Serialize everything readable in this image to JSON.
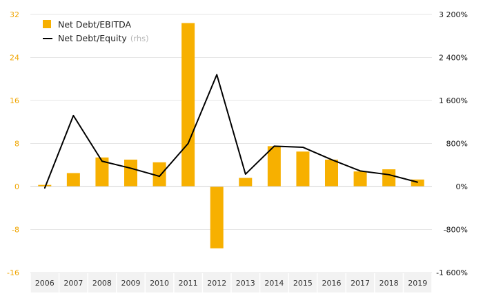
{
  "chart_data": {
    "type": "bar+line",
    "categories": [
      "2006",
      "2007",
      "2008",
      "2009",
      "2010",
      "2011",
      "2012",
      "2013",
      "2014",
      "2015",
      "2016",
      "2017",
      "2018",
      "2019"
    ],
    "series": [
      {
        "name": "Net Debt/EBITDA",
        "type": "bar",
        "axis": "left",
        "color": "#f7b000",
        "values": [
          0.3,
          2.5,
          5.4,
          5.0,
          4.5,
          30.4,
          -11.5,
          1.6,
          7.5,
          6.5,
          5.0,
          2.8,
          3.2,
          1.3
        ]
      },
      {
        "name": "Net Debt/Equity",
        "name_note": "(rhs)",
        "type": "line",
        "axis": "right",
        "color": "#000000",
        "values": [
          -30,
          1320,
          470,
          340,
          190,
          800,
          2080,
          230,
          750,
          730,
          500,
          290,
          220,
          80
        ]
      }
    ],
    "left_axis": {
      "min": -16,
      "max": 32,
      "step": 8,
      "tick_labels": [
        "32",
        "24",
        "16",
        "8",
        "0",
        "-8",
        "-16"
      ],
      "tick_color": "#f0a500"
    },
    "right_axis": {
      "min": -1600,
      "max": 3200,
      "step": 800,
      "tick_labels": [
        "3 200%",
        "2 400%",
        "1 600%",
        "800%",
        "0%",
        "-800%",
        "-1 600%"
      ],
      "tick_color": "#111111"
    },
    "grid": true,
    "legend_position": "top-left"
  }
}
